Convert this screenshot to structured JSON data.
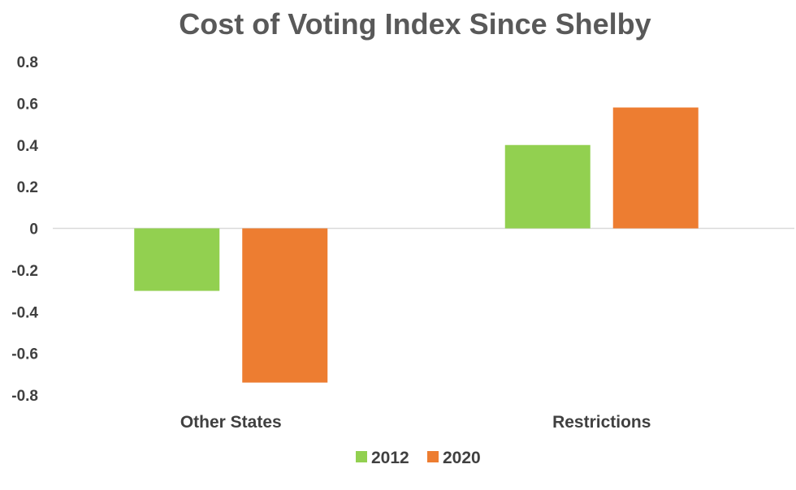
{
  "chart_data": {
    "type": "bar",
    "title": "Cost of Voting Index Since Shelby",
    "categories": [
      "Other States",
      "Restrictions"
    ],
    "series": [
      {
        "name": "2012",
        "color": "#92D050",
        "values": [
          -0.3,
          0.4
        ]
      },
      {
        "name": "2020",
        "color": "#ED7D31",
        "values": [
          -0.74,
          0.58
        ]
      }
    ],
    "ylim": [
      -0.8,
      0.8
    ],
    "yticks": [
      "0.8",
      "0.6",
      "0.4",
      "0.2",
      "0",
      "-0.2",
      "-0.4",
      "-0.6",
      "-0.8"
    ],
    "ytick_values": [
      0.8,
      0.6,
      0.4,
      0.2,
      0,
      -0.2,
      -0.4,
      -0.6,
      -0.8
    ],
    "xlabel": "",
    "ylabel": "",
    "grid": false,
    "legend_position": "bottom"
  }
}
